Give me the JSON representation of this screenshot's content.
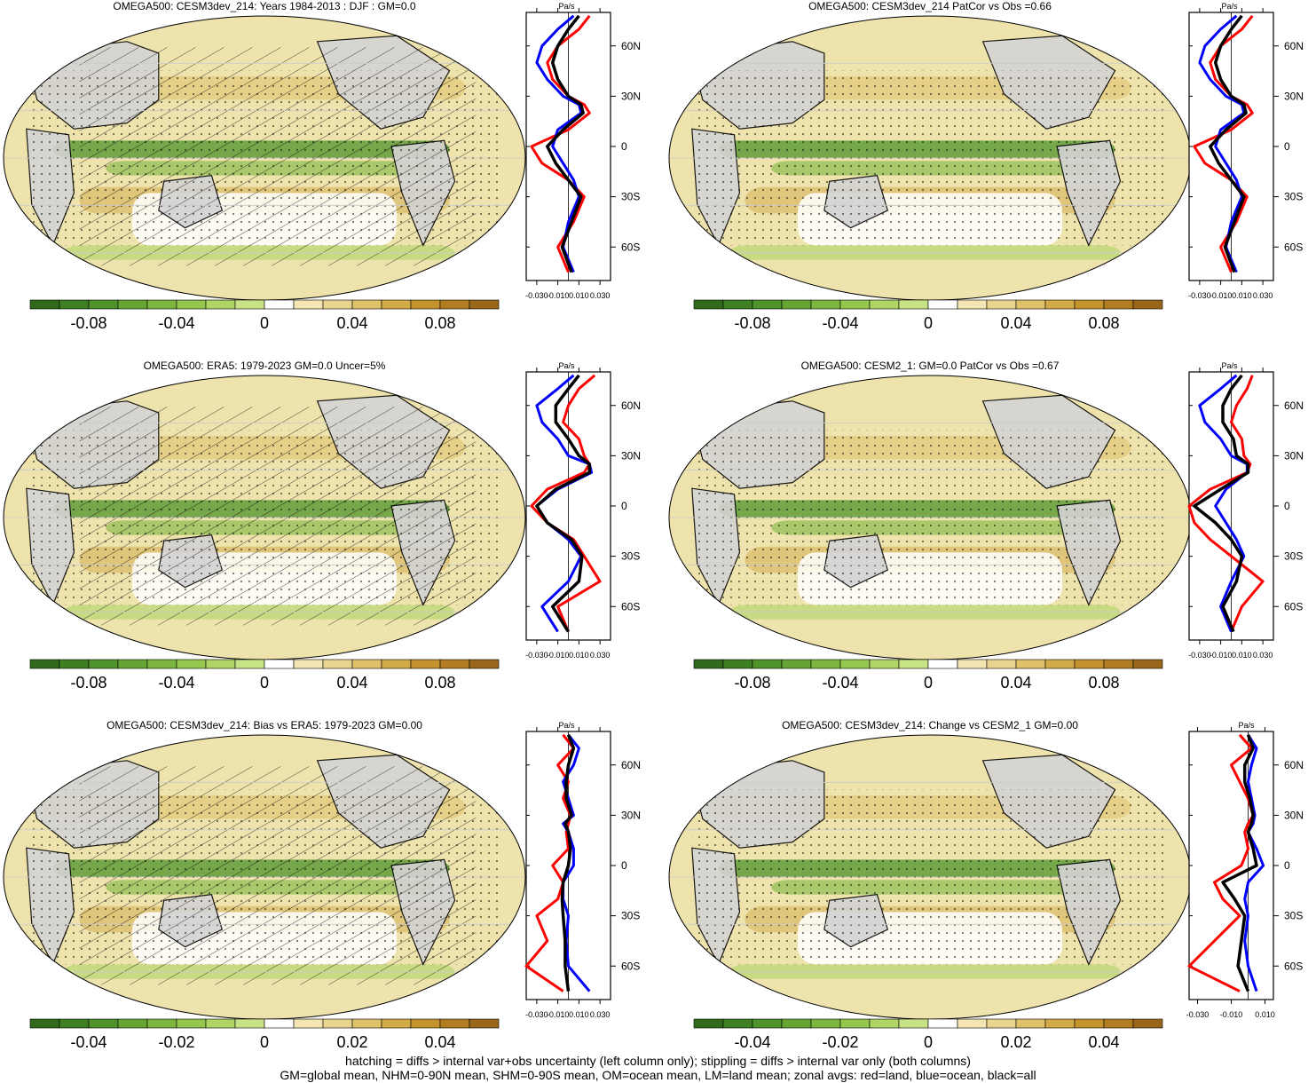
{
  "footer": {
    "line1": "hatching = diffs > internal var+obs uncertainty (left column only); stippling = diffs > internal var only (both columns)",
    "line2": "GM=global mean, NHM=0-90N mean, SHM=0-90S mean, OM=ocean mean, LM=land mean; zonal avgs: red=land, blue=ocean, black=all"
  },
  "colors": {
    "land_mask": "#d3d3d3",
    "zonal_land": "#ff0000",
    "zonal_ocean": "#0000ff",
    "zonal_all": "#000000",
    "colorbar": [
      "#2f6b1a",
      "#3d7f22",
      "#4f932b",
      "#64a534",
      "#7cb63f",
      "#95c64e",
      "#aed565",
      "#c8e386",
      "#ffffff",
      "#f3e6b2",
      "#e9d58f",
      "#dfc16a",
      "#d2aa47",
      "#c4932e",
      "#b27d22",
      "#9a661b"
    ]
  },
  "panels": [
    {
      "title": "OMEGA500: CESM3dev_214: Years 1984-2013 : DJF : GM=0.0",
      "colorbar_labels": [
        "-0.08",
        "-0.04",
        "0",
        "0.04",
        "0.08"
      ],
      "profile_unit": "Pa/s",
      "profile_xticks": [
        "-0.030",
        "-0.010",
        "0.010",
        "0.030"
      ],
      "profile_yticks": [
        "60N",
        "30N",
        "0",
        "30S",
        "60S"
      ]
    },
    {
      "title": "OMEGA500: CESM3dev_214 PatCor vs Obs =0.66",
      "colorbar_labels": [
        "-0.08",
        "-0.04",
        "0",
        "0.04",
        "0.08"
      ],
      "profile_unit": "Pa/s",
      "profile_xticks": [
        "-0.030",
        "-0.010",
        "0.010",
        "0.030"
      ],
      "profile_yticks": [
        "60N",
        "30N",
        "0",
        "30S",
        "60S"
      ]
    },
    {
      "title": "OMEGA500: ERA5: 1979-2023 GM=0.0 Uncer=5%",
      "colorbar_labels": [
        "-0.08",
        "-0.04",
        "0",
        "0.04",
        "0.08"
      ],
      "profile_unit": "Pa/s",
      "profile_xticks": [
        "-0.030",
        "-0.010",
        "0.010",
        "0.030"
      ],
      "profile_yticks": [
        "60N",
        "30N",
        "0",
        "30S",
        "60S"
      ]
    },
    {
      "title": "OMEGA500: CESM2_1: GM=0.0 PatCor vs Obs =0.67",
      "colorbar_labels": [
        "-0.08",
        "-0.04",
        "0",
        "0.04",
        "0.08"
      ],
      "profile_unit": "Pa/s",
      "profile_xticks": [
        "-0.030",
        "-0.010",
        "0.010",
        "0.030"
      ],
      "profile_yticks": [
        "60N",
        "30N",
        "0",
        "30S",
        "60S"
      ]
    },
    {
      "title": "OMEGA500: CESM3dev_214: Bias vs ERA5: 1979-2023 GM=0.00",
      "colorbar_labels": [
        "-0.04",
        "-0.02",
        "0",
        "0.02",
        "0.04"
      ],
      "profile_unit": "Pa/s",
      "profile_xticks": [
        "-0.030",
        "-0.010",
        "0.010",
        "0.030"
      ],
      "profile_yticks": [
        "60N",
        "30N",
        "0",
        "30S",
        "60S"
      ]
    },
    {
      "title": "OMEGA500: CESM3dev_214: Change vs CESM2_1 GM=0.00",
      "colorbar_labels": [
        "-0.04",
        "-0.02",
        "0",
        "0.02",
        "0.04"
      ],
      "profile_unit": "Pa/s",
      "profile_xticks": [
        "-0.030",
        "-0.010",
        "0.010"
      ],
      "profile_yticks": [
        "60N",
        "30N",
        "0",
        "30S",
        "60S"
      ]
    }
  ],
  "chart_data": [
    {
      "type": "line",
      "title": "OMEGA500: CESM3dev_214: Years 1984-2013 : DJF : GM=0.0",
      "xlabel": "Pa/s",
      "xlim": [
        -0.04,
        0.04
      ],
      "ylim": [
        -80,
        80
      ],
      "series": [
        {
          "x": [
            0.02,
            0.01,
            -0.01,
            -0.02,
            -0.015,
            0.0,
            0.015,
            0.02,
            0.0,
            -0.035,
            -0.025,
            0.0,
            0.015,
            0.005,
            -0.01,
            0.0
          ],
          "y": [
            78,
            70,
            60,
            50,
            40,
            30,
            25,
            20,
            10,
            0,
            -10,
            -20,
            -30,
            -45,
            -60,
            -75
          ]
        },
        {
          "x": [
            0.005,
            -0.01,
            -0.025,
            -0.03,
            -0.02,
            -0.005,
            0.01,
            0.012,
            -0.01,
            -0.015,
            -0.005,
            0.005,
            0.01,
            0.0,
            -0.005,
            0.005
          ],
          "y": [
            78,
            70,
            60,
            50,
            40,
            30,
            25,
            20,
            10,
            0,
            -10,
            -20,
            -30,
            -45,
            -60,
            -75
          ]
        },
        {
          "x": [
            0.01,
            0.0,
            -0.01,
            -0.015,
            -0.01,
            0.0,
            0.012,
            0.014,
            -0.005,
            -0.02,
            -0.012,
            0.0,
            0.012,
            0.003,
            -0.006,
            0.003
          ],
          "y": [
            78,
            70,
            60,
            50,
            40,
            30,
            25,
            20,
            10,
            0,
            -10,
            -20,
            -30,
            -45,
            -60,
            -75
          ]
        }
      ]
    },
    {
      "type": "line",
      "title": "OMEGA500: CESM3dev_214 PatCor vs Obs =0.66",
      "xlabel": "Pa/s",
      "xlim": [
        -0.04,
        0.04
      ],
      "ylim": [
        -80,
        80
      ],
      "series": [
        {
          "x": [
            0.02,
            0.01,
            -0.01,
            -0.02,
            -0.015,
            0.0,
            0.015,
            0.02,
            0.0,
            -0.035,
            -0.025,
            0.0,
            0.015,
            0.005,
            -0.01,
            0.0
          ],
          "y": [
            78,
            70,
            60,
            50,
            40,
            30,
            25,
            20,
            10,
            0,
            -10,
            -20,
            -30,
            -45,
            -60,
            -75
          ]
        },
        {
          "x": [
            0.005,
            -0.01,
            -0.025,
            -0.03,
            -0.02,
            -0.005,
            0.01,
            0.012,
            -0.01,
            -0.015,
            -0.005,
            0.005,
            0.01,
            0.0,
            -0.005,
            0.005
          ],
          "y": [
            78,
            70,
            60,
            50,
            40,
            30,
            25,
            20,
            10,
            0,
            -10,
            -20,
            -30,
            -45,
            -60,
            -75
          ]
        },
        {
          "x": [
            0.01,
            0.0,
            -0.01,
            -0.015,
            -0.01,
            0.0,
            0.012,
            0.014,
            -0.005,
            -0.02,
            -0.012,
            0.0,
            0.012,
            0.003,
            -0.006,
            0.003
          ],
          "y": [
            78,
            70,
            60,
            50,
            40,
            30,
            25,
            20,
            10,
            0,
            -10,
            -20,
            -30,
            -45,
            -60,
            -75
          ]
        }
      ]
    },
    {
      "type": "line",
      "title": "OMEGA500: ERA5: 1979-2023 GM=0.0 Uncer=5%",
      "xlabel": "Pa/s",
      "xlim": [
        -0.04,
        0.04
      ],
      "ylim": [
        -80,
        80
      ],
      "series": [
        {
          "x": [
            0.025,
            0.01,
            0.0,
            -0.005,
            0.01,
            0.015,
            0.02,
            0.015,
            -0.02,
            -0.035,
            -0.02,
            0.005,
            0.015,
            0.03,
            -0.01,
            0.0
          ],
          "y": [
            78,
            70,
            60,
            50,
            40,
            30,
            25,
            20,
            10,
            0,
            -10,
            -20,
            -30,
            -45,
            -60,
            -75
          ]
        },
        {
          "x": [
            0.005,
            -0.01,
            -0.03,
            -0.025,
            -0.01,
            0.0,
            0.02,
            0.022,
            -0.01,
            -0.03,
            -0.02,
            0.0,
            0.012,
            0.0,
            -0.025,
            -0.01
          ],
          "y": [
            78,
            70,
            60,
            50,
            40,
            30,
            25,
            20,
            10,
            0,
            -10,
            -20,
            -30,
            -45,
            -60,
            -75
          ]
        },
        {
          "x": [
            0.01,
            0.0,
            -0.012,
            -0.012,
            0.0,
            0.01,
            0.02,
            0.02,
            -0.012,
            -0.03,
            -0.02,
            0.003,
            0.013,
            0.01,
            -0.015,
            0.0
          ],
          "y": [
            78,
            70,
            60,
            50,
            40,
            30,
            25,
            20,
            10,
            0,
            -10,
            -20,
            -30,
            -45,
            -60,
            -75
          ]
        }
      ]
    },
    {
      "type": "line",
      "title": "OMEGA500: CESM2_1: GM=0.0 PatCor vs Obs =0.67",
      "xlabel": "Pa/s",
      "xlim": [
        -0.04,
        0.04
      ],
      "ylim": [
        -80,
        80
      ],
      "series": [
        {
          "x": [
            0.02,
            0.015,
            0.005,
            0.0,
            0.01,
            0.012,
            0.018,
            0.015,
            -0.02,
            -0.04,
            -0.035,
            -0.02,
            0.0,
            0.03,
            0.01,
            0.0
          ],
          "y": [
            78,
            70,
            60,
            50,
            40,
            30,
            25,
            20,
            10,
            0,
            -10,
            -20,
            -30,
            -45,
            -60,
            -75
          ]
        },
        {
          "x": [
            0.005,
            -0.01,
            -0.03,
            -0.025,
            -0.01,
            0.0,
            0.015,
            0.015,
            -0.005,
            -0.015,
            -0.005,
            0.005,
            0.012,
            0.0,
            -0.01,
            0.0
          ],
          "y": [
            78,
            70,
            60,
            50,
            40,
            30,
            25,
            20,
            10,
            0,
            -10,
            -20,
            -30,
            -45,
            -60,
            -75
          ]
        },
        {
          "x": [
            0.01,
            0.0,
            -0.008,
            -0.008,
            0.002,
            0.005,
            0.016,
            0.016,
            -0.01,
            -0.035,
            -0.015,
            0.0,
            0.01,
            0.005,
            -0.008,
            0.002
          ],
          "y": [
            78,
            70,
            60,
            50,
            40,
            30,
            25,
            20,
            10,
            0,
            -10,
            -20,
            -30,
            -45,
            -60,
            -75
          ]
        }
      ]
    },
    {
      "type": "line",
      "title": "OMEGA500: CESM3dev_214: Bias vs ERA5: 1979-2023 GM=0.00",
      "xlabel": "Pa/s",
      "xlim": [
        -0.04,
        0.04
      ],
      "ylim": [
        -80,
        80
      ],
      "series": [
        {
          "x": [
            -0.005,
            0.005,
            -0.01,
            0.0,
            -0.005,
            0.002,
            0.0,
            -0.002,
            0.0,
            -0.015,
            -0.005,
            -0.01,
            -0.03,
            -0.02,
            -0.04,
            -0.005
          ],
          "y": [
            78,
            70,
            60,
            50,
            40,
            30,
            25,
            20,
            10,
            0,
            -10,
            -20,
            -30,
            -45,
            -60,
            -75
          ]
        },
        {
          "x": [
            0.0,
            0.01,
            0.005,
            -0.005,
            0.0,
            0.005,
            -0.005,
            0.0,
            0.005,
            0.005,
            -0.005,
            -0.005,
            0.0,
            -0.002,
            0.0,
            0.02
          ],
          "y": [
            78,
            70,
            60,
            50,
            40,
            30,
            25,
            20,
            10,
            0,
            -10,
            -20,
            -30,
            -45,
            -60,
            -75
          ]
        },
        {
          "x": [
            0.0,
            0.005,
            0.0,
            -0.002,
            -0.002,
            0.003,
            -0.003,
            0.0,
            0.002,
            0.0,
            -0.005,
            -0.006,
            -0.005,
            -0.003,
            -0.003,
            0.0
          ],
          "y": [
            78,
            70,
            60,
            50,
            40,
            30,
            25,
            20,
            10,
            0,
            -10,
            -20,
            -30,
            -45,
            -60,
            -75
          ]
        }
      ]
    },
    {
      "type": "line",
      "title": "OMEGA500: CESM3dev_214: Change vs CESM2_1 GM=0.00",
      "xlabel": "Pa/s",
      "xlim": [
        -0.035,
        0.015
      ],
      "ylim": [
        -80,
        80
      ],
      "series": [
        {
          "x": [
            -0.005,
            0.002,
            -0.01,
            -0.005,
            0.0,
            0.003,
            0.0,
            -0.002,
            0.0,
            -0.004,
            -0.02,
            -0.015,
            -0.005,
            -0.02,
            -0.035,
            -0.005
          ],
          "y": [
            78,
            70,
            60,
            50,
            40,
            30,
            25,
            20,
            10,
            0,
            -10,
            -20,
            -30,
            -45,
            -60,
            -75
          ]
        },
        {
          "x": [
            0.0,
            0.005,
            0.002,
            0.0,
            0.002,
            0.004,
            0.003,
            0.0,
            0.005,
            0.009,
            0.0,
            -0.002,
            0.0,
            -0.002,
            0.0,
            0.005
          ],
          "y": [
            78,
            70,
            60,
            50,
            40,
            30,
            25,
            20,
            10,
            0,
            -10,
            -20,
            -30,
            -45,
            -60,
            -75
          ]
        },
        {
          "x": [
            0.0,
            0.003,
            -0.002,
            -0.002,
            0.001,
            0.003,
            0.002,
            0.0,
            0.003,
            0.005,
            -0.015,
            -0.008,
            -0.002,
            -0.004,
            -0.006,
            0.0
          ],
          "y": [
            78,
            70,
            60,
            50,
            40,
            30,
            25,
            20,
            10,
            0,
            -10,
            -20,
            -30,
            -45,
            -60,
            -75
          ]
        }
      ]
    }
  ]
}
